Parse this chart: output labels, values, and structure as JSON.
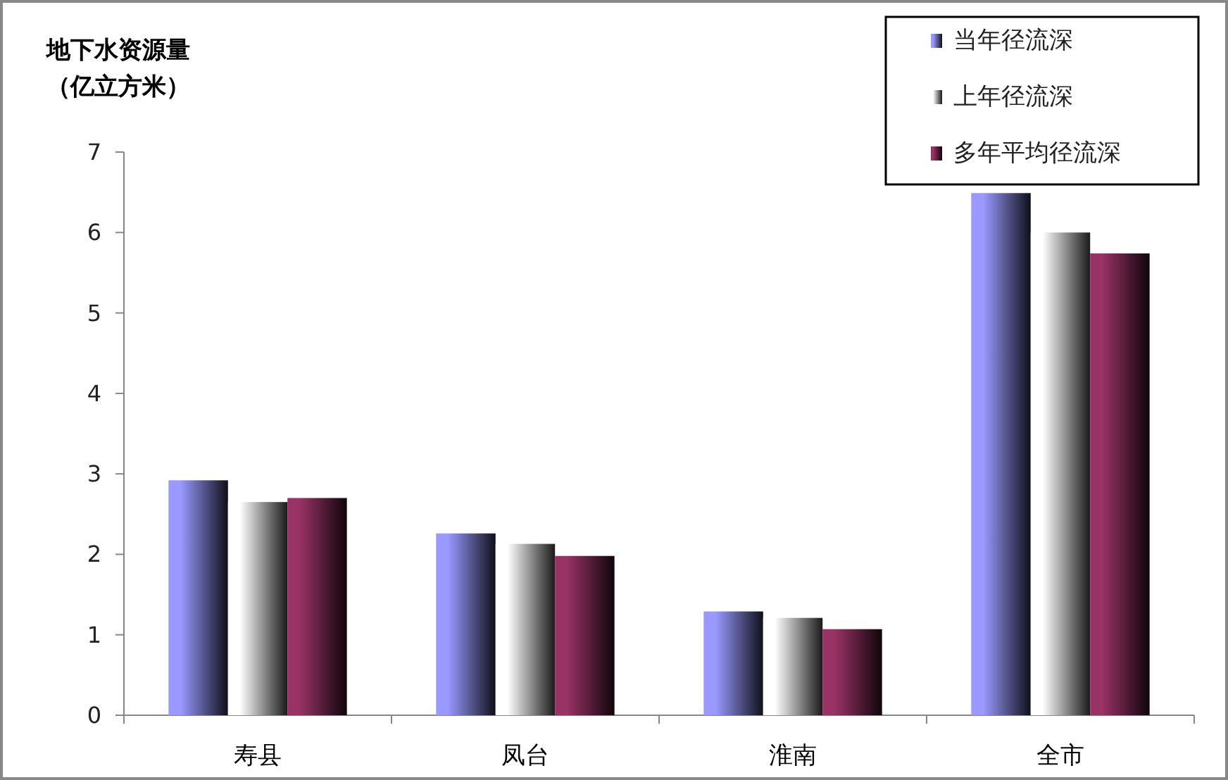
{
  "chart_data": {
    "type": "bar",
    "ylabel": "地下水资源量（亿立方米）",
    "categories": [
      "寿县",
      "凤台",
      "淮南",
      "全市"
    ],
    "series": [
      {
        "name": "当年径流深",
        "color": "#9999ff",
        "values": [
          2.92,
          2.26,
          1.29,
          6.49
        ]
      },
      {
        "name": "上年径流深",
        "color": "#ffffff",
        "values": [
          2.65,
          2.13,
          1.21,
          6.0
        ]
      },
      {
        "name": "多年平均径流深",
        "color": "#993366",
        "values": [
          2.7,
          1.98,
          1.07,
          5.74
        ]
      }
    ],
    "ylim": [
      0,
      7
    ],
    "yticks": [
      0,
      1,
      2,
      3,
      4,
      5,
      6,
      7
    ],
    "legend": "top right"
  }
}
